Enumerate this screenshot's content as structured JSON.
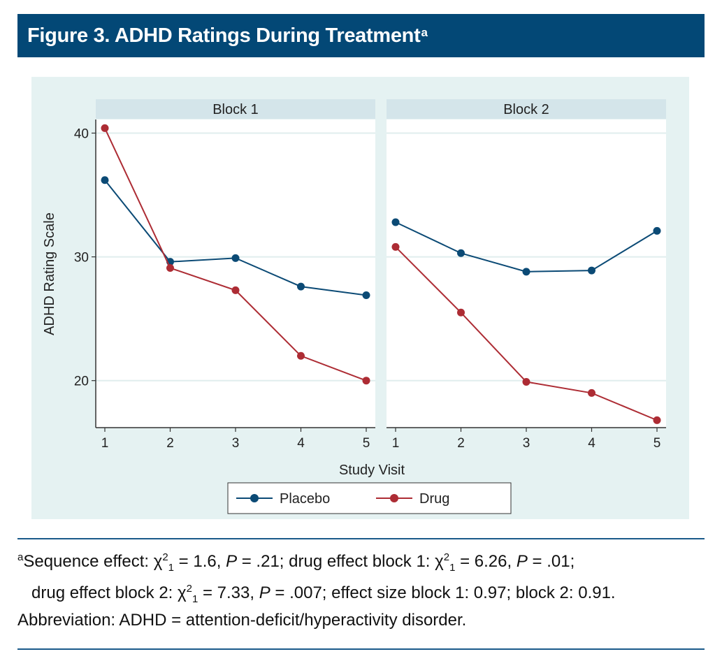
{
  "figure": {
    "title": "Figure 3. ADHD Ratings During Treatment",
    "title_superscript": "a"
  },
  "colors": {
    "title_bg": "#034876",
    "panel_bg": "#e5f2f2",
    "strip_bg": "#d4e5ea",
    "placebo": "#0b4a75",
    "drug": "#ad2c34"
  },
  "chart_data": {
    "type": "line",
    "ylabel": "ADHD Rating Scale",
    "xlabel": "Study Visit",
    "ylim": [
      16.2,
      41.1
    ],
    "yticks": [
      20,
      30,
      40
    ],
    "x": [
      1,
      2,
      3,
      4,
      5
    ],
    "grid": true,
    "legend_position": "bottom",
    "legend": [
      "Placebo",
      "Drug"
    ],
    "panels": [
      {
        "title": "Block 1",
        "series": [
          {
            "name": "Placebo",
            "values": [
              36.2,
              29.6,
              29.9,
              27.6,
              26.9
            ]
          },
          {
            "name": "Drug",
            "values": [
              40.4,
              29.1,
              27.3,
              22.0,
              20.0
            ]
          }
        ]
      },
      {
        "title": "Block 2",
        "series": [
          {
            "name": "Placebo",
            "values": [
              32.8,
              30.3,
              28.8,
              28.9,
              32.1
            ]
          },
          {
            "name": "Drug",
            "values": [
              30.8,
              25.5,
              19.9,
              19.0,
              16.8
            ]
          }
        ]
      }
    ]
  },
  "footnotes": {
    "a_marker": "a",
    "line1_pre": "Sequence effect: χ",
    "sup2": "2",
    "sub1": "1",
    "seq_stat": " = 1.6, ",
    "P": "P",
    "seq_p": " = .21; drug effect block 1: χ",
    "b1_stat": " = 6.26, ",
    "b1_p": " = .01;",
    "line2_pre": "drug effect block 2: χ",
    "b2_stat": " = 7.33, ",
    "b2_p": " = .007; effect size block 1: 0.97; block 2: 0.91.",
    "abbreviation": "Abbreviation: ADHD = attention-deficit/hyperactivity disorder."
  }
}
